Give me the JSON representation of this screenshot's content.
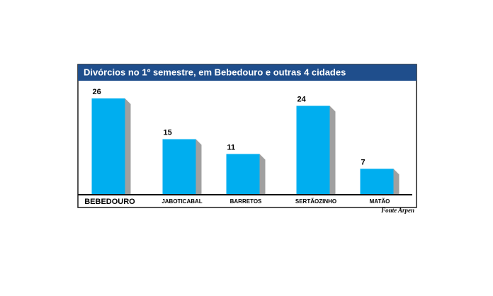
{
  "chart_data": {
    "type": "bar",
    "title": "Divórcios no 1º semestre, em Bebedouro e outras 4 cidades",
    "categories": [
      "BEBEDOURO",
      "JABOTICABAL",
      "BARRETOS",
      "SERTÃOZINHO",
      "MATÃO"
    ],
    "values": [
      26,
      15,
      11,
      24,
      7
    ],
    "color": "#00aeef",
    "side_color": "#a0a0a0",
    "source": "Fonte Arpen"
  }
}
